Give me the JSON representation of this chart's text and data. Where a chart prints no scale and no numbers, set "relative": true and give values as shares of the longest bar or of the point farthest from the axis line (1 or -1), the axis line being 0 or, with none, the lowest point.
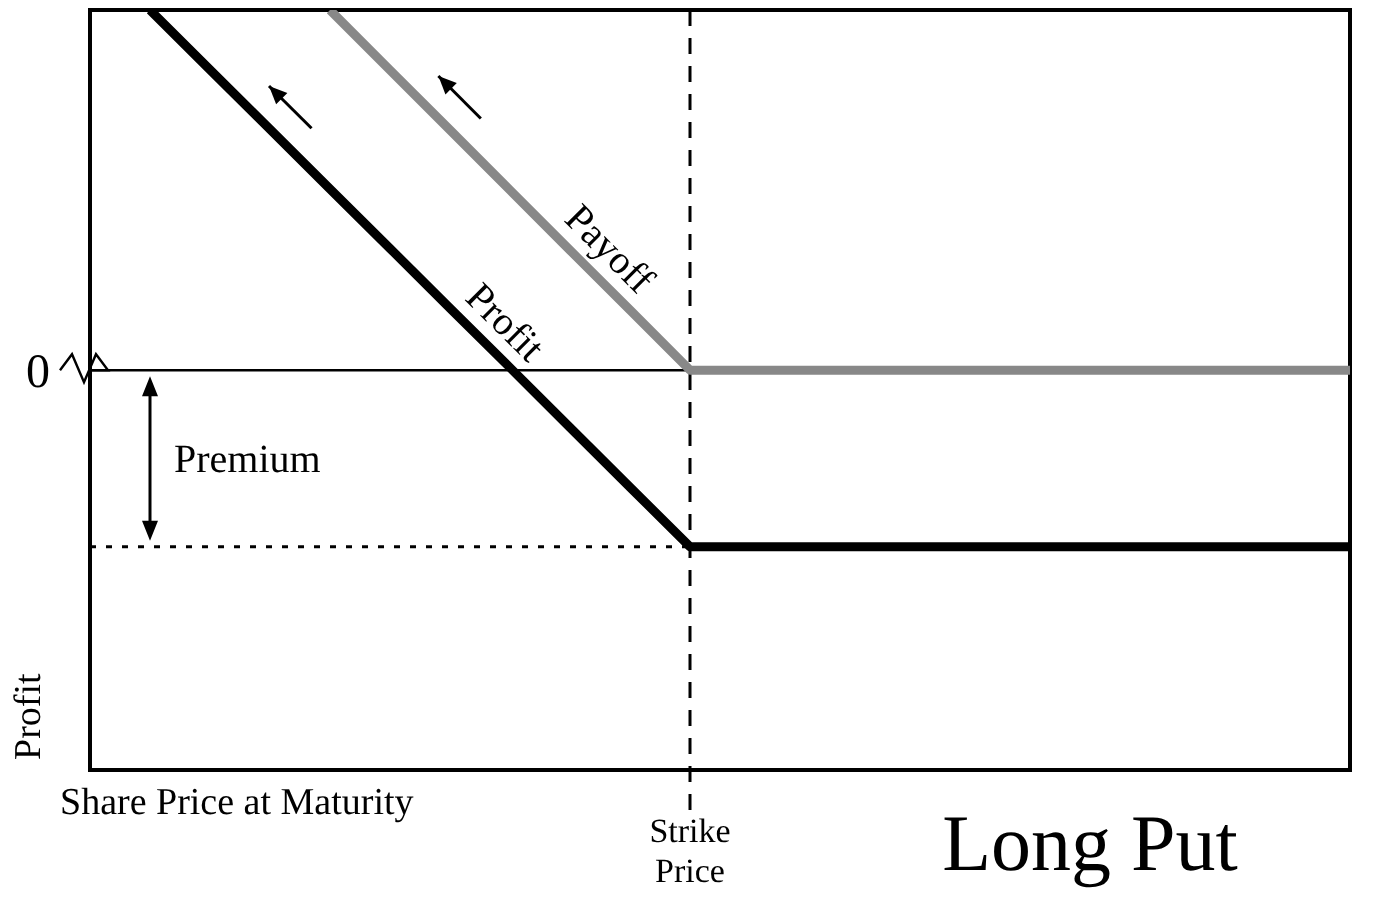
{
  "chart_data": {
    "type": "line",
    "title": "Long Put",
    "ylabel": "Profit",
    "relative": true,
    "categories": [
      null,
      null,
      null,
      null,
      null,
      null,
      null,
      null,
      null,
      null,
      null,
      null,
      null,
      null,
      null,
      null,
      null,
      null,
      null,
      null,
      null,
      null
    ],
    "series": [
      {
        "name": "Payoff",
        "color": "#888888",
        "values": [
          null,
          null,
          null,
          null,
          1,
          0.833,
          0.667,
          0.5,
          0.333,
          0.167,
          0,
          0,
          0,
          0,
          0,
          0,
          0,
          0,
          0,
          0,
          0,
          0
        ]
      },
      {
        "name": "Profit",
        "color": "#000000",
        "values": [
          null,
          1,
          0.834,
          0.669,
          0.503,
          0.338,
          0.172,
          0.007,
          -0.159,
          -0.325,
          -0.49,
          -0.49,
          -0.49,
          -0.49,
          -0.49,
          -0.49,
          -0.49,
          -0.49,
          -0.49,
          -0.49,
          -0.49,
          -0.49
        ]
      }
    ],
    "ref_lines": [
      {
        "axis": "y",
        "value": -0.49,
        "label": null,
        "line_style": "dotted",
        "color": "#000000"
      }
    ],
    "annotations": [
      "0",
      "Premium",
      "Share Price at Maturity",
      "Strike Price"
    ],
    "line_style": "solid"
  }
}
